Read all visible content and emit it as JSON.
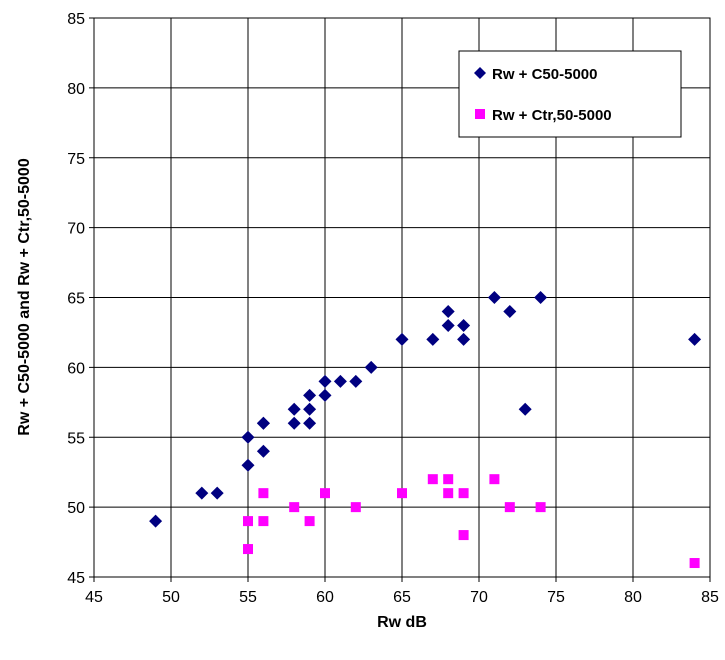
{
  "chart_data": {
    "type": "scatter",
    "title": "",
    "xlabel": "Rw  dB",
    "ylabel": "Rw + C50-5000 and Rw + Ctr,50-5000",
    "xlim": [
      45,
      85
    ],
    "ylim": [
      45,
      85
    ],
    "x_ticks": [
      "45",
      "50",
      "55",
      "60",
      "65",
      "70",
      "75",
      "80",
      "85"
    ],
    "y_ticks": [
      "45",
      "50",
      "55",
      "60",
      "65",
      "70",
      "75",
      "80",
      "85"
    ],
    "grid": true,
    "legend_position": "top-right",
    "series": [
      {
        "name": "Rw + C50-5000",
        "marker": "diamond",
        "color": "#000080",
        "points": [
          [
            49,
            49
          ],
          [
            52,
            51
          ],
          [
            53,
            51
          ],
          [
            55,
            55
          ],
          [
            55,
            53
          ],
          [
            56,
            56
          ],
          [
            56,
            56
          ],
          [
            56,
            54
          ],
          [
            58,
            57
          ],
          [
            58,
            56
          ],
          [
            59,
            58
          ],
          [
            59,
            57
          ],
          [
            59,
            56
          ],
          [
            60,
            59
          ],
          [
            60,
            58
          ],
          [
            61,
            59
          ],
          [
            62,
            59
          ],
          [
            63,
            60
          ],
          [
            65,
            62
          ],
          [
            67,
            62
          ],
          [
            68,
            64
          ],
          [
            68,
            63
          ],
          [
            69,
            63
          ],
          [
            69,
            62
          ],
          [
            71,
            65
          ],
          [
            72,
            64
          ],
          [
            73,
            57
          ],
          [
            74,
            65
          ],
          [
            84,
            62
          ]
        ]
      },
      {
        "name": "Rw + Ctr,50-5000",
        "marker": "square",
        "color": "#ff00ff",
        "points": [
          [
            55,
            49
          ],
          [
            55,
            47
          ],
          [
            56,
            51
          ],
          [
            56,
            49
          ],
          [
            58,
            50
          ],
          [
            59,
            49
          ],
          [
            60,
            51
          ],
          [
            62,
            50
          ],
          [
            65,
            51
          ],
          [
            67,
            52
          ],
          [
            68,
            52
          ],
          [
            68,
            51
          ],
          [
            69,
            51
          ],
          [
            69,
            48
          ],
          [
            71,
            52
          ],
          [
            72,
            50
          ],
          [
            74,
            50
          ],
          [
            84,
            46
          ]
        ]
      }
    ]
  }
}
